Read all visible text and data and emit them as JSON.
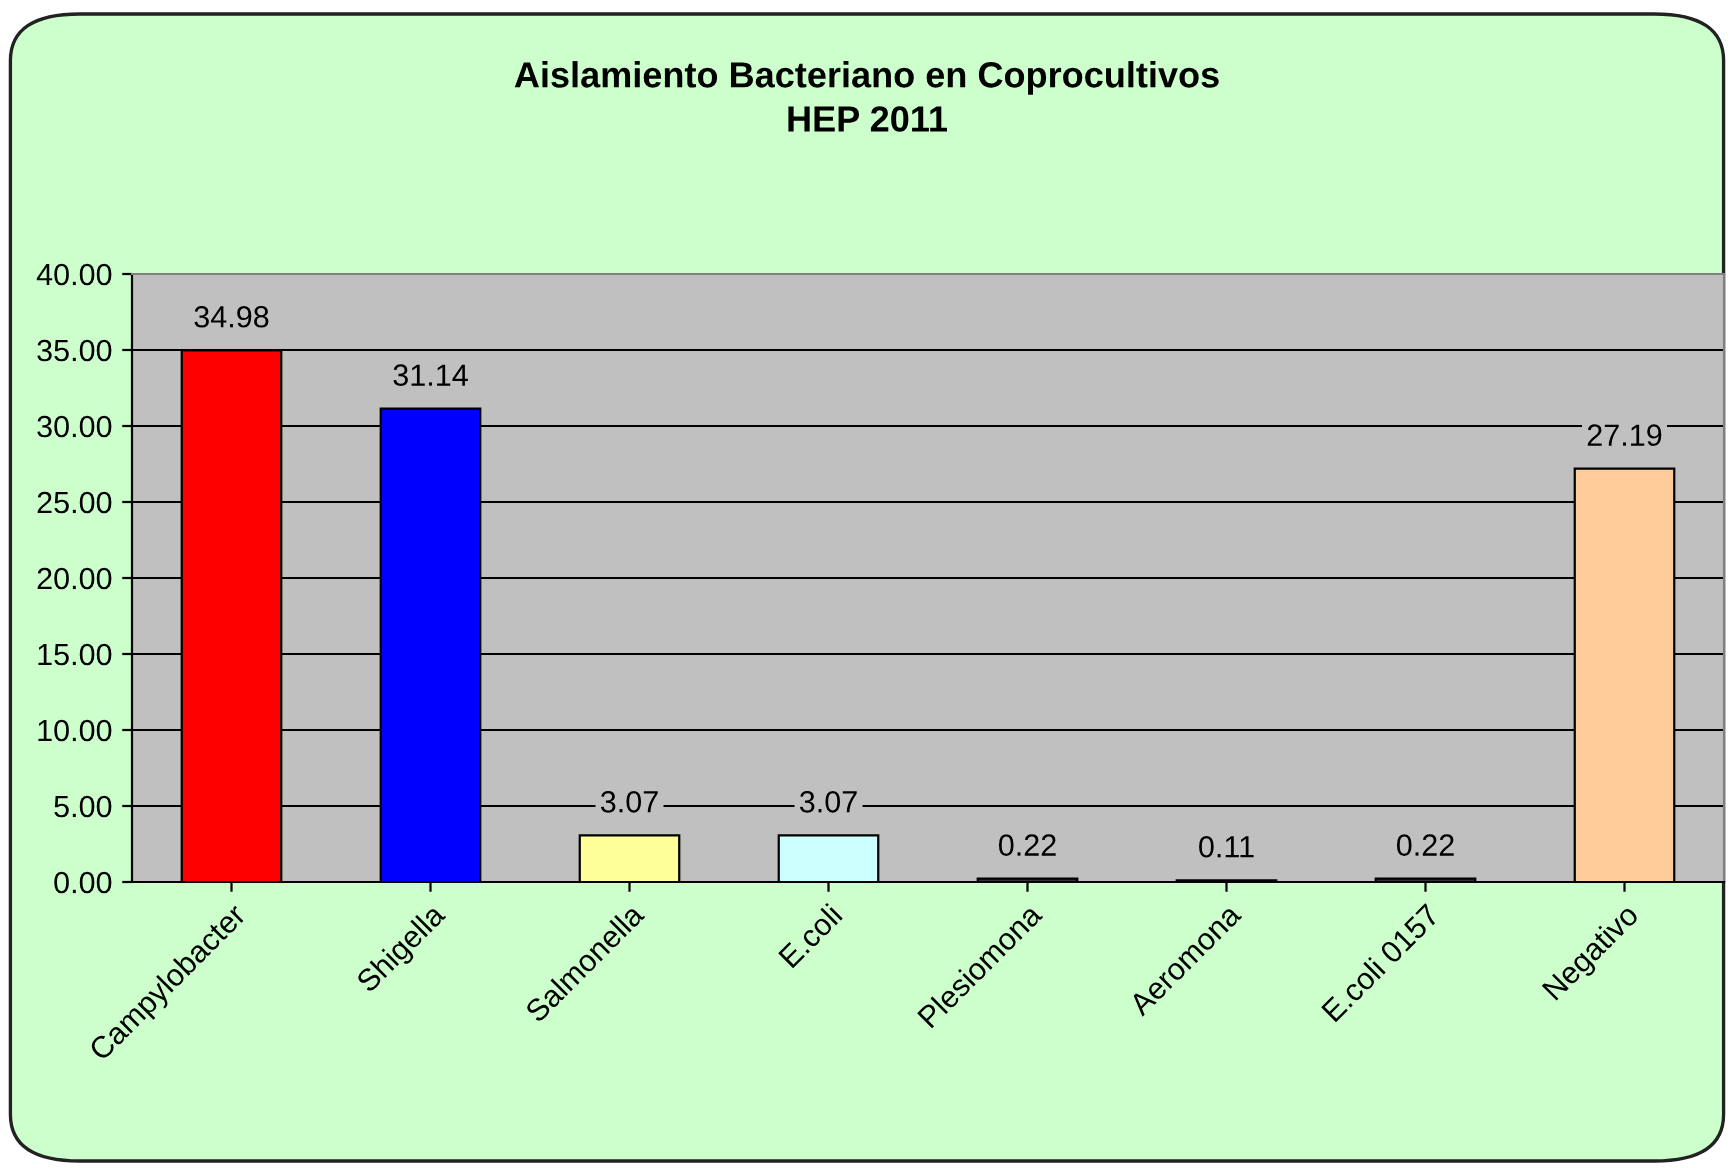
{
  "chart_data": {
    "type": "bar",
    "title": "Aislamiento Bacteriano en Coprocultivos\nHEP 2011",
    "categories": [
      "Campylobacter",
      "Shigella",
      "Salmonella",
      "E.coli",
      "Plesiomona",
      "Aeromona",
      "E.coli 0157",
      "Negativo"
    ],
    "values": [
      34.98,
      31.14,
      3.07,
      3.07,
      0.22,
      0.11,
      0.22,
      27.19
    ],
    "colors": [
      "#ff0000",
      "#0000ff",
      "#ffff99",
      "#ccffff",
      "#333333",
      "#333333",
      "#333333",
      "#ffcc99"
    ],
    "ylim": [
      0,
      40
    ],
    "yticks": [
      {
        "value": 0,
        "label": "0.00"
      },
      {
        "value": 5,
        "label": "5.00"
      },
      {
        "value": 10,
        "label": "10.00"
      },
      {
        "value": 15,
        "label": "15.00"
      },
      {
        "value": 20,
        "label": "20.00"
      },
      {
        "value": 25,
        "label": "25.00"
      },
      {
        "value": 30,
        "label": "30.00"
      },
      {
        "value": 35,
        "label": "35.00"
      },
      {
        "value": 40,
        "label": "40.00"
      }
    ],
    "grid": "y",
    "data_labels": true,
    "legend": false
  }
}
